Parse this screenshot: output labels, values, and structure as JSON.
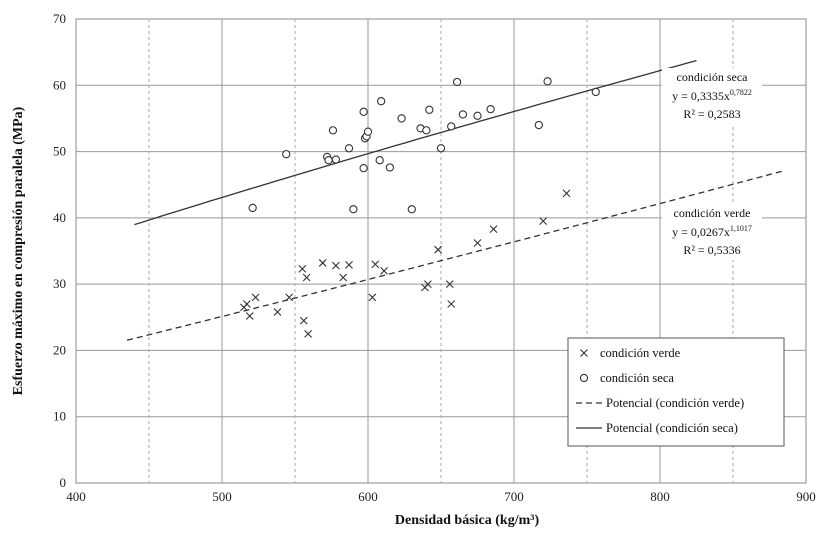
{
  "chart_data": {
    "type": "scatter",
    "xlabel": "Densidad básica (kg/m³)",
    "ylabel": "Esfuerzo máximo en compresión paralela (MPa)",
    "xlim": [
      400,
      900
    ],
    "ylim": [
      0,
      70
    ],
    "x_ticks": [
      "400",
      "500",
      "600",
      "700",
      "800",
      "900"
    ],
    "y_ticks": [
      "0",
      "10",
      "20",
      "30",
      "40",
      "50",
      "60",
      "70"
    ],
    "x_minor_gridlines": [
      450,
      550,
      650,
      750,
      850
    ],
    "grid": true,
    "legend_position": "bottom-right",
    "series": [
      {
        "name": "condición verde",
        "marker": "x",
        "points": [
          [
            515,
            26.5
          ],
          [
            517,
            27
          ],
          [
            519,
            25.2
          ],
          [
            523,
            28
          ],
          [
            538,
            25.8
          ],
          [
            546,
            28
          ],
          [
            555,
            32.3
          ],
          [
            556,
            24.5
          ],
          [
            558,
            31
          ],
          [
            559,
            22.5
          ],
          [
            569,
            33.2
          ],
          [
            578,
            32.8
          ],
          [
            583,
            31
          ],
          [
            587,
            32.9
          ],
          [
            603,
            28
          ],
          [
            605,
            33
          ],
          [
            611,
            32
          ],
          [
            639,
            29.5
          ],
          [
            641,
            30
          ],
          [
            648,
            35.2
          ],
          [
            656,
            30
          ],
          [
            657,
            27
          ],
          [
            675,
            36.2
          ],
          [
            686,
            38.3
          ],
          [
            720,
            39.5
          ],
          [
            736,
            43.7
          ]
        ]
      },
      {
        "name": "condición seca",
        "marker": "o",
        "points": [
          [
            521,
            41.5
          ],
          [
            544,
            49.6
          ],
          [
            572,
            49.2
          ],
          [
            573,
            48.7
          ],
          [
            576,
            53.2
          ],
          [
            578,
            48.8
          ],
          [
            587,
            50.5
          ],
          [
            590,
            41.3
          ],
          [
            597,
            47.5
          ],
          [
            597,
            56
          ],
          [
            598,
            52
          ],
          [
            599,
            52.3
          ],
          [
            600,
            53
          ],
          [
            608,
            48.7
          ],
          [
            609,
            57.6
          ],
          [
            615,
            47.6
          ],
          [
            623,
            55
          ],
          [
            630,
            41.3
          ],
          [
            636,
            53.5
          ],
          [
            640,
            53.2
          ],
          [
            642,
            56.3
          ],
          [
            650,
            50.5
          ],
          [
            657,
            53.8
          ],
          [
            661,
            60.5
          ],
          [
            665,
            55.6
          ],
          [
            675,
            55.4
          ],
          [
            684,
            56.4
          ],
          [
            717,
            54
          ],
          [
            723,
            60.6
          ],
          [
            756,
            59
          ]
        ]
      },
      {
        "name": "Potencial (condición verde)",
        "type": "line",
        "style": "dashed",
        "equation": {
          "a": 0.0267,
          "b": 1.1017
        },
        "x_range": [
          435,
          885
        ]
      },
      {
        "name": "Potencial (condición seca)",
        "type": "line",
        "style": "solid",
        "equation": {
          "a": 0.3335,
          "b": 0.7822
        },
        "x_range": [
          440,
          825
        ]
      }
    ],
    "annotations": [
      {
        "title": "condición seca",
        "eq_base": "y = 0,3335x",
        "eq_exp": "0,7822",
        "r2": "R² = 0,2583"
      },
      {
        "title": "condición verde",
        "eq_base": "y = 0,0267x",
        "eq_exp": "1,1017",
        "r2": "R² = 0,5336"
      }
    ]
  }
}
